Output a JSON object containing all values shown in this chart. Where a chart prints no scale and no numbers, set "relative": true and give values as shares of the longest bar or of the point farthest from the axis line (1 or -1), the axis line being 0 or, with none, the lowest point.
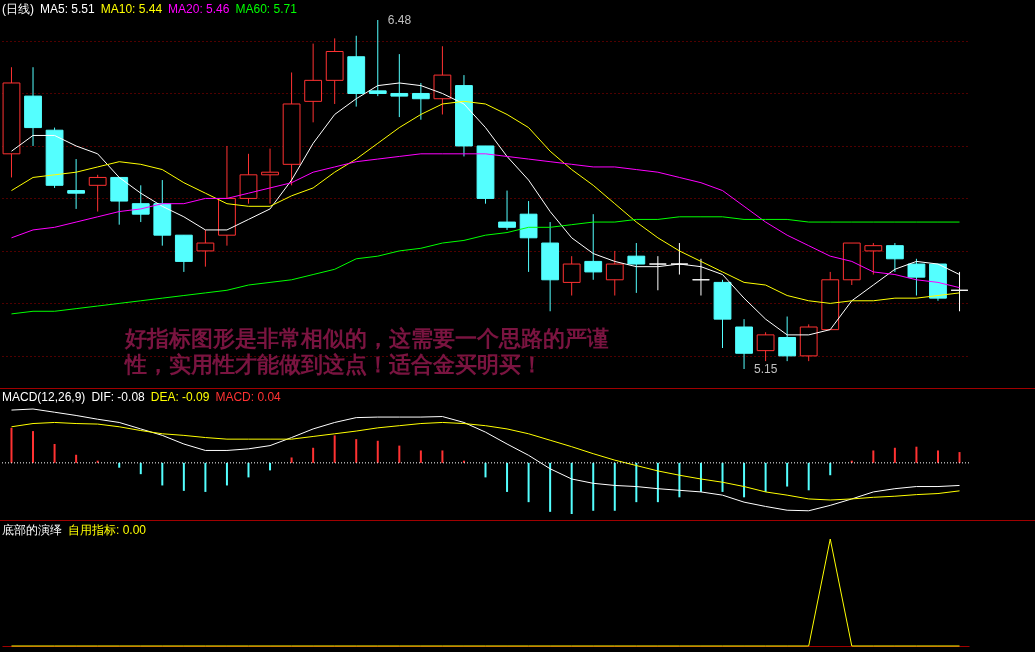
{
  "chart_data": [
    {
      "type": "candlestick",
      "title": "(日线)",
      "legend": "top left",
      "grid": "y",
      "categories": [
        null,
        null,
        null,
        null,
        null,
        null,
        null,
        null,
        null,
        null,
        null,
        null,
        null,
        null,
        null,
        null,
        null,
        null,
        null,
        null,
        null,
        null,
        null,
        null,
        null,
        null,
        null,
        null,
        null,
        null,
        null,
        null,
        null,
        null,
        null,
        null,
        null,
        null,
        null,
        null,
        null,
        null,
        null,
        null,
        null
      ],
      "ohlc": [
        [
          5.97,
          6.3,
          5.88,
          6.24
        ],
        [
          6.19,
          6.3,
          6.0,
          6.07
        ],
        [
          6.06,
          6.07,
          5.84,
          5.85
        ],
        [
          5.83,
          5.95,
          5.76,
          5.82
        ],
        [
          5.85,
          5.89,
          5.75,
          5.88
        ],
        [
          5.88,
          5.88,
          5.7,
          5.79
        ],
        [
          5.78,
          5.85,
          5.71,
          5.74
        ],
        [
          5.78,
          5.87,
          5.62,
          5.66
        ],
        [
          5.66,
          5.66,
          5.52,
          5.56
        ],
        [
          5.6,
          5.68,
          5.54,
          5.63
        ],
        [
          5.66,
          6.0,
          5.62,
          5.8
        ],
        [
          5.8,
          5.97,
          5.78,
          5.89
        ],
        [
          5.89,
          5.99,
          5.78,
          5.9
        ],
        [
          5.93,
          6.28,
          5.85,
          6.16
        ],
        [
          6.17,
          6.39,
          6.09,
          6.25
        ],
        [
          6.25,
          6.41,
          6.16,
          6.36
        ],
        [
          6.34,
          6.42,
          6.15,
          6.2
        ],
        [
          6.21,
          6.48,
          6.19,
          6.2
        ],
        [
          6.2,
          6.35,
          6.11,
          6.19
        ],
        [
          6.2,
          6.24,
          6.1,
          6.18
        ],
        [
          6.18,
          6.38,
          6.12,
          6.27
        ],
        [
          6.23,
          6.27,
          5.96,
          6.0
        ],
        [
          6.0,
          6.0,
          5.78,
          5.8
        ],
        [
          5.71,
          5.83,
          5.68,
          5.69
        ],
        [
          5.74,
          5.79,
          5.52,
          5.65
        ],
        [
          5.63,
          5.71,
          5.37,
          5.49
        ],
        [
          5.48,
          5.58,
          5.43,
          5.55
        ],
        [
          5.56,
          5.74,
          5.49,
          5.52
        ],
        [
          5.49,
          5.6,
          5.43,
          5.55
        ],
        [
          5.58,
          5.63,
          5.44,
          5.55
        ],
        [
          5.55,
          5.58,
          5.45,
          5.55
        ],
        [
          5.55,
          5.63,
          5.51,
          5.55
        ],
        [
          5.49,
          5.57,
          5.43,
          5.49
        ],
        [
          5.48,
          5.49,
          5.23,
          5.34
        ],
        [
          5.31,
          5.34,
          5.15,
          5.21
        ],
        [
          5.22,
          5.29,
          5.18,
          5.28
        ],
        [
          5.27,
          5.35,
          5.18,
          5.2
        ],
        [
          5.2,
          5.32,
          5.18,
          5.31
        ],
        [
          5.3,
          5.52,
          5.3,
          5.49
        ],
        [
          5.49,
          5.63,
          5.47,
          5.63
        ],
        [
          5.6,
          5.63,
          5.51,
          5.62
        ],
        [
          5.62,
          5.63,
          5.52,
          5.57
        ],
        [
          5.55,
          5.57,
          5.43,
          5.5
        ],
        [
          5.55,
          5.55,
          5.41,
          5.42
        ],
        [
          5.45,
          5.52,
          5.37,
          5.45
        ]
      ],
      "colors": [
        "#ff3232",
        "#54ffff",
        "#54ffff",
        "#54ffff",
        "#ff3232",
        "#54ffff",
        "#54ffff",
        "#54ffff",
        "#54ffff",
        "#ff3232",
        "#ff3232",
        "#ff3232",
        "#ff3232",
        "#ff3232",
        "#ff3232",
        "#ff3232",
        "#54ffff",
        "#54ffff",
        "#54ffff",
        "#54ffff",
        "#ff3232",
        "#54ffff",
        "#54ffff",
        "#54ffff",
        "#54ffff",
        "#54ffff",
        "#ff3232",
        "#54ffff",
        "#ff3232",
        "#54ffff",
        "#ffffff",
        "#ffffff",
        "#ffffff",
        "#54ffff",
        "#54ffff",
        "#ff3232",
        "#54ffff",
        "#ff3232",
        "#ff3232",
        "#ff3232",
        "#ff3232",
        "#54ffff",
        "#54ffff",
        "#54ffff",
        "#ffffff"
      ],
      "series": [
        {
          "name": "MA5: 5.51",
          "type": "line",
          "color": "#ffffff",
          "values": [
            5.98,
            6.04,
            6.04,
            6.0,
            5.97,
            5.88,
            5.82,
            5.77,
            5.73,
            5.68,
            5.68,
            5.72,
            5.76,
            5.87,
            6.01,
            6.12,
            6.18,
            6.23,
            6.24,
            6.23,
            6.2,
            6.16,
            6.07,
            5.96,
            5.87,
            5.75,
            5.65,
            5.59,
            5.56,
            5.54,
            5.54,
            5.55,
            5.54,
            5.51,
            5.42,
            5.34,
            5.28,
            5.28,
            5.3,
            5.41,
            5.47,
            5.53,
            5.56,
            5.55,
            5.51
          ]
        },
        {
          "name": "MA10: 5.44",
          "type": "line",
          "color": "#ffff00",
          "values": [
            5.83,
            5.88,
            5.89,
            5.9,
            5.92,
            5.94,
            5.93,
            5.91,
            5.86,
            5.82,
            5.78,
            5.77,
            5.77,
            5.81,
            5.84,
            5.9,
            5.95,
            6.01,
            6.07,
            6.12,
            6.16,
            6.17,
            6.16,
            6.12,
            6.07,
            5.98,
            5.91,
            5.85,
            5.78,
            5.71,
            5.65,
            5.6,
            5.56,
            5.52,
            5.48,
            5.47,
            5.43,
            5.41,
            5.4,
            5.41,
            5.41,
            5.42,
            5.42,
            5.43,
            5.44
          ]
        },
        {
          "name": "MA20: 5.46",
          "type": "line",
          "color": "#ff00ff",
          "values": [
            5.65,
            5.68,
            5.69,
            5.71,
            5.73,
            5.75,
            5.76,
            5.78,
            5.78,
            5.8,
            5.8,
            5.82,
            5.84,
            5.86,
            5.9,
            5.92,
            5.94,
            5.95,
            5.96,
            5.97,
            5.97,
            5.97,
            5.97,
            5.96,
            5.95,
            5.94,
            5.93,
            5.92,
            5.92,
            5.91,
            5.9,
            5.88,
            5.86,
            5.83,
            5.77,
            5.71,
            5.66,
            5.62,
            5.58,
            5.56,
            5.52,
            5.51,
            5.49,
            5.48,
            5.46
          ]
        },
        {
          "name": "MA60: 5.71",
          "type": "line",
          "color": "#00ff00",
          "values": [
            5.36,
            5.37,
            5.37,
            5.38,
            5.39,
            5.4,
            5.41,
            5.42,
            5.43,
            5.44,
            5.45,
            5.47,
            5.48,
            5.49,
            5.51,
            5.53,
            5.57,
            5.58,
            5.6,
            5.61,
            5.63,
            5.64,
            5.66,
            5.67,
            5.69,
            5.69,
            5.7,
            5.71,
            5.71,
            5.72,
            5.72,
            5.73,
            5.73,
            5.73,
            5.72,
            5.72,
            5.72,
            5.71,
            5.71,
            5.71,
            5.71,
            5.71,
            5.71,
            5.71,
            5.71
          ]
        }
      ],
      "yticks": [
        {
          "value": 6.4,
          "label": null
        },
        {
          "value": 6.2,
          "label": null
        },
        {
          "value": 6.0,
          "label": null
        },
        {
          "value": 5.8,
          "label": null
        },
        {
          "value": 5.6,
          "label": null
        },
        {
          "value": 5.4,
          "label": null
        },
        {
          "value": 5.2,
          "label": null
        }
      ],
      "annotations": [
        "6.48",
        "5.15",
        "好指标图形是非常相似的，这需要一个思路的严谨性，实用性才能做到这点！适合金买明买！"
      ]
    },
    {
      "type": "bar",
      "title": "MACD(12,26,9)",
      "legend": "top left",
      "relative": true,
      "categories": [
        null,
        null,
        null,
        null,
        null,
        null,
        null,
        null,
        null,
        null,
        null,
        null,
        null,
        null,
        null,
        null,
        null,
        null,
        null,
        null,
        null,
        null,
        null,
        null,
        null,
        null,
        null,
        null,
        null,
        null,
        null,
        null,
        null,
        null,
        null,
        null,
        null,
        null,
        null,
        null,
        null,
        null,
        null,
        null,
        null
      ],
      "series": [
        {
          "name": "DIF: -0.08",
          "type": "line",
          "color": "#ffffff",
          "values": [
            0.98,
            1,
            0.94,
            0.88,
            0.81,
            0.75,
            0.63,
            0.51,
            0.35,
            0.23,
            0.23,
            0.26,
            0.32,
            0.47,
            0.63,
            0.75,
            0.84,
            0.85,
            0.85,
            0.85,
            0.86,
            0.75,
            0.57,
            0.35,
            0.14,
            -0.11,
            -0.3,
            -0.38,
            -0.42,
            -0.44,
            -0.48,
            -0.51,
            -0.54,
            -0.6,
            -0.73,
            -0.81,
            -0.88,
            -0.89,
            -0.79,
            -0.67,
            -0.54,
            -0.48,
            -0.44,
            -0.44,
            -0.42
          ]
        },
        {
          "name": "DEA: -0.09",
          "type": "line",
          "color": "#ffff00",
          "values": [
            0.67,
            0.73,
            0.75,
            0.73,
            0.72,
            0.67,
            0.6,
            0.54,
            0.51,
            0.47,
            0.44,
            0.44,
            0.44,
            0.44,
            0.49,
            0.54,
            0.59,
            0.65,
            0.69,
            0.73,
            0.75,
            0.73,
            0.69,
            0.63,
            0.54,
            0.42,
            0.3,
            0.17,
            0.05,
            -0.05,
            -0.15,
            -0.23,
            -0.3,
            -0.36,
            -0.44,
            -0.54,
            -0.6,
            -0.67,
            -0.69,
            -0.67,
            -0.64,
            -0.62,
            -0.59,
            -0.57,
            -0.52
          ]
        },
        {
          "name": "MACD: 0.04",
          "type": "bar",
          "color": "#ff3232",
          "colors": [
            "#ff3232",
            "#ff3232",
            "#ff3232",
            "#ff3232",
            "#ff3232",
            "#54ffff",
            "#54ffff",
            "#54ffff",
            "#54ffff",
            "#54ffff",
            "#54ffff",
            "#54ffff",
            "#54ffff",
            "#ff3232",
            "#ff3232",
            "#ff3232",
            "#ff3232",
            "#ff3232",
            "#ff3232",
            "#ff3232",
            "#ff3232",
            "#ff3232",
            "#54ffff",
            "#54ffff",
            "#54ffff",
            "#54ffff",
            "#54ffff",
            "#54ffff",
            "#54ffff",
            "#54ffff",
            "#54ffff",
            "#54ffff",
            "#54ffff",
            "#54ffff",
            "#54ffff",
            "#54ffff",
            "#54ffff",
            "#54ffff",
            "#54ffff",
            "#ff3232",
            "#ff3232",
            "#ff3232",
            "#ff3232",
            "#ff3232",
            "#ff3232"
          ],
          "values": [
            0.65,
            0.59,
            0.35,
            0.15,
            0.04,
            -0.09,
            -0.21,
            -0.42,
            -0.52,
            -0.54,
            -0.42,
            -0.27,
            -0.14,
            0.1,
            0.28,
            0.51,
            0.44,
            0.41,
            0.32,
            0.23,
            0.23,
            0.04,
            -0.27,
            -0.54,
            -0.73,
            -0.91,
            -0.95,
            -0.89,
            -0.89,
            -0.73,
            -0.73,
            -0.64,
            -0.54,
            -0.54,
            -0.64,
            -0.54,
            -0.44,
            -0.51,
            -0.23,
            0.04,
            0.23,
            0.28,
            0.3,
            0.23,
            0.2
          ]
        }
      ],
      "ref_lines": [
        {
          "axis": "y",
          "value": 0,
          "color": "#ffffff",
          "line_style": "dotted"
        }
      ]
    },
    {
      "type": "line",
      "title": "底部的演绎",
      "legend": "top left",
      "relative": true,
      "categories": [
        null,
        null,
        null,
        null,
        null,
        null,
        null,
        null,
        null,
        null,
        null,
        null,
        null,
        null,
        null,
        null,
        null,
        null,
        null,
        null,
        null,
        null,
        null,
        null,
        null,
        null,
        null,
        null,
        null,
        null,
        null,
        null,
        null,
        null,
        null,
        null,
        null,
        null,
        null,
        null,
        null,
        null,
        null,
        null,
        null
      ],
      "series": [
        {
          "name": "自用指标: 0.00",
          "color": "#ffff00",
          "values": [
            0,
            0,
            0,
            0,
            0,
            0,
            0,
            0,
            0,
            0,
            0,
            0,
            0,
            0,
            0,
            0,
            0,
            0,
            0,
            0,
            0,
            0,
            0,
            0,
            0,
            0,
            0,
            0,
            0,
            0,
            0,
            0,
            0,
            0,
            0,
            0,
            0,
            0,
            1,
            0,
            0,
            0,
            0,
            0,
            0
          ]
        }
      ]
    }
  ]
}
